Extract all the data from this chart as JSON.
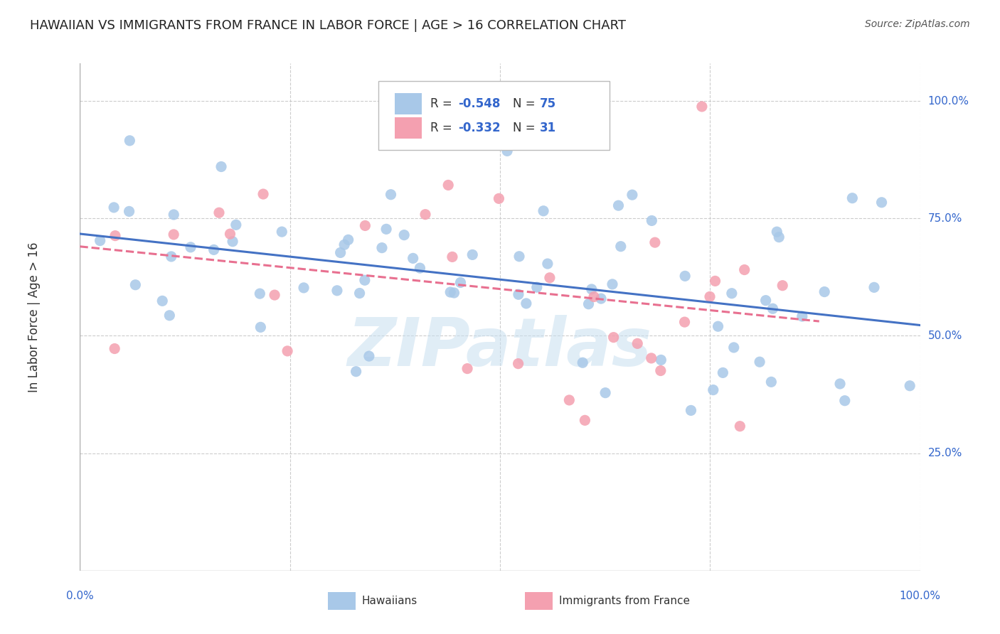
{
  "title": "HAWAIIAN VS IMMIGRANTS FROM FRANCE IN LABOR FORCE | AGE > 16 CORRELATION CHART",
  "source": "Source: ZipAtlas.com",
  "ylabel": "In Labor Force | Age > 16",
  "legend_labels": [
    "Hawaiians",
    "Immigrants from France"
  ],
  "R_hawaiian": -0.548,
  "N_hawaiian": 75,
  "R_france": -0.332,
  "N_france": 31,
  "hawaiian_color": "#a8c8e8",
  "france_color": "#f4a0b0",
  "hawaiian_line_color": "#4472c4",
  "france_line_color": "#e87090",
  "watermark": "ZIPatlas",
  "xlim": [
    0.0,
    1.0
  ],
  "ylim": [
    0.0,
    1.08
  ],
  "yticks": [
    0.25,
    0.5,
    0.75,
    1.0
  ],
  "ytick_labels": [
    "25.0%",
    "50.0%",
    "75.0%",
    "100.0%"
  ]
}
